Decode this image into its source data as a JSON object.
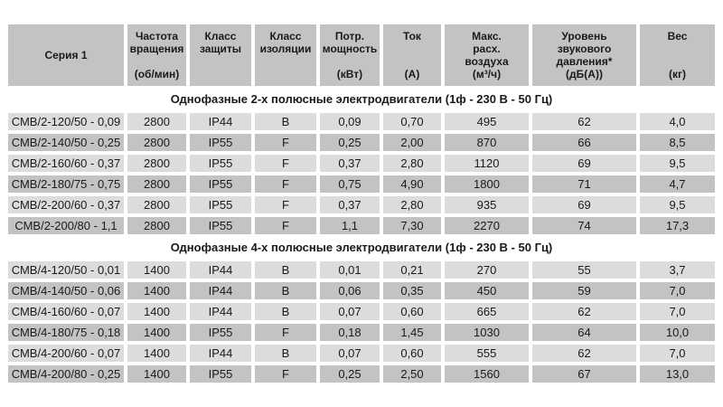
{
  "table": {
    "columns": [
      {
        "title": "Серия 1",
        "unit": ""
      },
      {
        "title": "Частота\nвращения",
        "unit": "(об/мин)"
      },
      {
        "title": "Класс\nзащиты",
        "unit": ""
      },
      {
        "title": "Класс\nизоляции",
        "unit": ""
      },
      {
        "title": "Потр.\nмощность",
        "unit": "(кВт)"
      },
      {
        "title": "Ток",
        "unit": "(А)"
      },
      {
        "title": "Макс.\nрасх.\nвоздуха",
        "unit": "(м³/ч)"
      },
      {
        "title": "Уровень звукового\nдавления*",
        "unit": "(дБ(А))"
      },
      {
        "title": "Вес",
        "unit": "(кг)"
      }
    ],
    "sections": [
      {
        "title": "Однофазные 2-х полюсные электродвигатели (1ф - 230 В - 50 Гц)",
        "rows": [
          [
            "СМВ/2-120/50 - 0,09",
            "2800",
            "IP44",
            "B",
            "0,09",
            "0,70",
            "495",
            "62",
            "4,0"
          ],
          [
            "СМВ/2-140/50 - 0,25",
            "2800",
            "IP55",
            "F",
            "0,25",
            "2,00",
            "870",
            "66",
            "8,5"
          ],
          [
            "СМВ/2-160/60 - 0,37",
            "2800",
            "IP55",
            "F",
            "0,37",
            "2,80",
            "1120",
            "69",
            "9,5"
          ],
          [
            "СМВ/2-180/75 - 0,75",
            "2800",
            "IP55",
            "F",
            "0,75",
            "4,90",
            "1800",
            "71",
            "4,7"
          ],
          [
            "СМВ/2-200/60 - 0,37",
            "2800",
            "IP55",
            "F",
            "0,37",
            "2,80",
            "935",
            "69",
            "9,5"
          ],
          [
            "СМВ/2-200/80 - 1,1",
            "2800",
            "IP55",
            "F",
            "1,1",
            "7,30",
            "2270",
            "74",
            "17,3"
          ]
        ]
      },
      {
        "title": "Однофазные 4-х полюсные электродвигатели (1ф - 230 В - 50 Гц)",
        "rows": [
          [
            "СМВ/4-120/50 - 0,01",
            "1400",
            "IP44",
            "B",
            "0,01",
            "0,21",
            "270",
            "55",
            "3,7"
          ],
          [
            "СМВ/4-140/50 - 0,06",
            "1400",
            "IP44",
            "B",
            "0,06",
            "0,35",
            "450",
            "59",
            "7,0"
          ],
          [
            "СМВ/4-160/60 - 0,07",
            "1400",
            "IP44",
            "B",
            "0,07",
            "0,60",
            "665",
            "62",
            "7,0"
          ],
          [
            "СМВ/4-180/75 - 0,18",
            "1400",
            "IP55",
            "F",
            "0,18",
            "1,45",
            "1030",
            "64",
            "10,0"
          ],
          [
            "СМВ/4-200/60 - 0,07",
            "1400",
            "IP44",
            "B",
            "0,07",
            "0,60",
            "555",
            "62",
            "7,0"
          ],
          [
            "СМВ/4-200/80 - 0,25",
            "1400",
            "IP55",
            "F",
            "0,25",
            "2,50",
            "1560",
            "67",
            "13,0"
          ]
        ]
      }
    ],
    "colors": {
      "header_bg": "#c3c3c3",
      "row_light_bg": "#dcdcdc",
      "row_dark_bg": "#c3c3c3",
      "gap": "#ffffff",
      "text": "#1a1a1a"
    }
  }
}
